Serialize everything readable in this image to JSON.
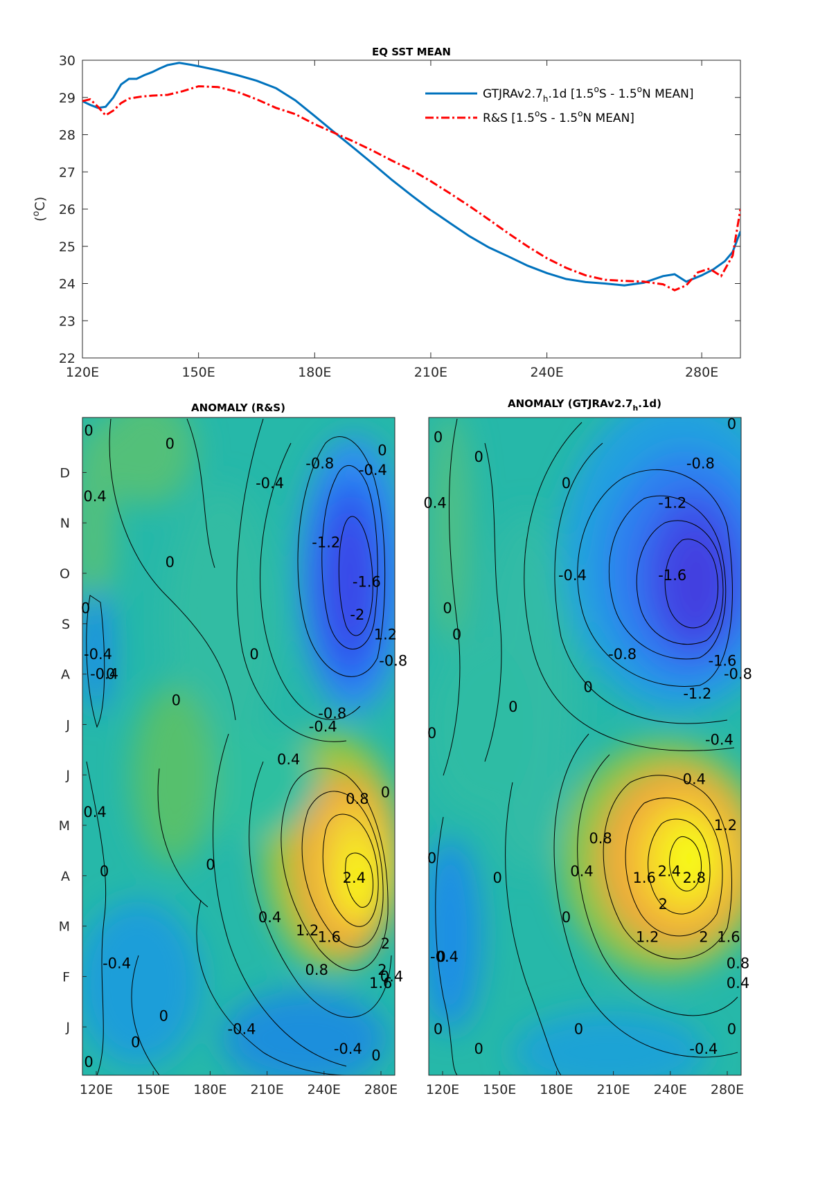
{
  "chart_data": [
    {
      "type": "line",
      "title": "EQ SST MEAN",
      "xlabel": "",
      "ylabel": "(°C)",
      "ylim": [
        22,
        30
      ],
      "xlim": [
        120,
        290
      ],
      "xticks": [
        {
          "value": 120,
          "label": "120E"
        },
        {
          "value": 150,
          "label": "150E"
        },
        {
          "value": 180,
          "label": "180E"
        },
        {
          "value": 210,
          "label": "210E"
        },
        {
          "value": 240,
          "label": "240E"
        },
        {
          "value": 280,
          "label": "280E"
        }
      ],
      "yticks": [
        22,
        23,
        24,
        25,
        26,
        27,
        28,
        29,
        30
      ],
      "grid": false,
      "legend_position": "top-right",
      "series": [
        {
          "name": "GTJRAv2.7h.1d [1.5°S - 1.5°N MEAN]",
          "legend": {
            "pre": "GTJRAv2.7",
            "sub": "h",
            "post": ".1d [1.5",
            "sup1": "o",
            "mid": "S - 1.5",
            "sup2": "o",
            "end": "N MEAN]"
          },
          "color": "#0072BD",
          "style": "solid",
          "x": [
            120,
            122,
            124,
            126,
            128,
            130,
            132,
            134,
            136,
            138,
            140,
            142,
            145,
            148,
            150,
            155,
            160,
            165,
            170,
            175,
            180,
            185,
            190,
            195,
            200,
            205,
            210,
            215,
            220,
            225,
            230,
            235,
            240,
            245,
            250,
            255,
            260,
            265,
            270,
            273,
            276,
            280,
            283,
            286,
            288,
            290
          ],
          "y": [
            28.9,
            28.8,
            28.72,
            28.75,
            29.0,
            29.35,
            29.5,
            29.5,
            29.6,
            29.68,
            29.78,
            29.87,
            29.93,
            29.88,
            29.84,
            29.73,
            29.6,
            29.45,
            29.25,
            28.92,
            28.5,
            28.07,
            27.65,
            27.22,
            26.78,
            26.37,
            25.98,
            25.62,
            25.27,
            24.97,
            24.73,
            24.48,
            24.28,
            24.12,
            24.04,
            24.0,
            23.95,
            24.02,
            24.2,
            24.25,
            24.05,
            24.22,
            24.38,
            24.6,
            24.85,
            25.4
          ]
        },
        {
          "name": "R&S [1.5°S - 1.5°N MEAN]",
          "legend": {
            "pre": "R&S [1.5",
            "sup1": "o",
            "mid": "S - 1.5",
            "sup2": "o",
            "end": "N MEAN]"
          },
          "color": "#FF0000",
          "style": "dashdot",
          "x": [
            120,
            122,
            124,
            126,
            128,
            130,
            132,
            135,
            138,
            142,
            146,
            150,
            155,
            160,
            165,
            170,
            175,
            180,
            185,
            190,
            195,
            200,
            205,
            210,
            215,
            220,
            225,
            230,
            235,
            240,
            245,
            250,
            255,
            260,
            265,
            270,
            273,
            276,
            279,
            282,
            285,
            288,
            290
          ],
          "y": [
            28.9,
            28.95,
            28.75,
            28.52,
            28.65,
            28.85,
            28.97,
            29.02,
            29.05,
            29.07,
            29.17,
            29.3,
            29.28,
            29.15,
            28.95,
            28.72,
            28.55,
            28.28,
            28.05,
            27.82,
            27.57,
            27.3,
            27.05,
            26.75,
            26.42,
            26.08,
            25.72,
            25.35,
            25.0,
            24.68,
            24.42,
            24.22,
            24.1,
            24.07,
            24.05,
            23.98,
            23.82,
            23.95,
            24.3,
            24.4,
            24.2,
            24.75,
            26.0
          ]
        }
      ]
    },
    {
      "type": "heatmap",
      "title": "ANOMALY (R&S)",
      "xticks": [
        "120E",
        "150E",
        "180E",
        "210E",
        "240E",
        "280E"
      ],
      "yticks": [
        "J",
        "F",
        "M",
        "A",
        "M",
        "J",
        "J",
        "A",
        "S",
        "O",
        "N",
        "D"
      ],
      "contour_labels": [
        {
          "v": "0",
          "x": 0.02,
          "y": 0.02
        },
        {
          "v": "0.4",
          "x": 0.04,
          "y": 0.12
        },
        {
          "v": "0",
          "x": 0.28,
          "y": 0.04
        },
        {
          "v": "-0.4",
          "x": 0.6,
          "y": 0.1
        },
        {
          "v": "-0.8",
          "x": 0.76,
          "y": 0.07
        },
        {
          "v": "-0.4",
          "x": 0.93,
          "y": 0.08
        },
        {
          "v": "0",
          "x": 0.96,
          "y": 0.05
        },
        {
          "v": "-1.2",
          "x": 0.78,
          "y": 0.19
        },
        {
          "v": "0",
          "x": 0.28,
          "y": 0.22
        },
        {
          "v": "0",
          "x": 0.01,
          "y": 0.29
        },
        {
          "v": "-1.6",
          "x": 0.91,
          "y": 0.25
        },
        {
          "v": "-2",
          "x": 0.88,
          "y": 0.3
        },
        {
          "v": "-0.4",
          "x": 0.05,
          "y": 0.36
        },
        {
          "v": "1.2",
          "x": 0.97,
          "y": 0.33
        },
        {
          "v": "0",
          "x": 0.55,
          "y": 0.36
        },
        {
          "v": "-0.8",
          "x": 0.995,
          "y": 0.37
        },
        {
          "v": "-0.4",
          "x": 0.07,
          "y": 0.39
        },
        {
          "v": "0",
          "x": 0.09,
          "y": 0.39
        },
        {
          "v": "0",
          "x": 0.3,
          "y": 0.43
        },
        {
          "v": "-0.8",
          "x": 0.8,
          "y": 0.45
        },
        {
          "v": "-0.4",
          "x": 0.77,
          "y": 0.47
        },
        {
          "v": "0.4",
          "x": 0.66,
          "y": 0.52
        },
        {
          "v": "0.8",
          "x": 0.88,
          "y": 0.58
        },
        {
          "v": "0",
          "x": 0.97,
          "y": 0.57
        },
        {
          "v": "0.4",
          "x": 0.04,
          "y": 0.6
        },
        {
          "v": "0",
          "x": 0.41,
          "y": 0.68
        },
        {
          "v": "2.4",
          "x": 0.87,
          "y": 0.7
        },
        {
          "v": "0",
          "x": 0.07,
          "y": 0.69
        },
        {
          "v": "0.4",
          "x": 0.6,
          "y": 0.76
        },
        {
          "v": "1.2",
          "x": 0.72,
          "y": 0.78
        },
        {
          "v": "1.6",
          "x": 0.79,
          "y": 0.79
        },
        {
          "v": "2",
          "x": 0.97,
          "y": 0.8
        },
        {
          "v": "2",
          "x": 0.96,
          "y": 0.84
        },
        {
          "v": "1.6",
          "x": 0.955,
          "y": 0.86
        },
        {
          "v": "0.8",
          "x": 0.75,
          "y": 0.84
        },
        {
          "v": "0.4",
          "x": 0.99,
          "y": 0.85
        },
        {
          "v": "-0.4",
          "x": 0.11,
          "y": 0.83
        },
        {
          "v": "0",
          "x": 0.26,
          "y": 0.91
        },
        {
          "v": "-0.4",
          "x": 0.51,
          "y": 0.93
        },
        {
          "v": "0",
          "x": 0.17,
          "y": 0.95
        },
        {
          "v": "-0.4",
          "x": 0.85,
          "y": 0.96
        },
        {
          "v": "0",
          "x": 0.94,
          "y": 0.97
        },
        {
          "v": "0",
          "x": 0.02,
          "y": 0.98
        }
      ]
    },
    {
      "type": "heatmap",
      "title": "ANOMALY (GTJRAv2.7h.1d)",
      "title_parts": {
        "pre": "ANOMALY (GTJRAv2.7",
        "sub": "h",
        "post": ".1d)"
      },
      "xticks": [
        "120E",
        "150E",
        "180E",
        "210E",
        "240E",
        "280E"
      ],
      "contour_labels": [
        {
          "v": "0",
          "x": 0.03,
          "y": 0.03
        },
        {
          "v": "0",
          "x": 0.97,
          "y": 0.01
        },
        {
          "v": "0",
          "x": 0.16,
          "y": 0.06
        },
        {
          "v": "0.4",
          "x": 0.02,
          "y": 0.13
        },
        {
          "v": "0",
          "x": 0.44,
          "y": 0.1
        },
        {
          "v": "-0.8",
          "x": 0.87,
          "y": 0.07
        },
        {
          "v": "-1.2",
          "x": 0.78,
          "y": 0.13
        },
        {
          "v": "-0.4",
          "x": 0.46,
          "y": 0.24
        },
        {
          "v": "-1.6",
          "x": 0.78,
          "y": 0.24
        },
        {
          "v": "0",
          "x": 0.06,
          "y": 0.29
        },
        {
          "v": "0",
          "x": 0.09,
          "y": 0.33
        },
        {
          "v": "-0.8",
          "x": 0.62,
          "y": 0.36
        },
        {
          "v": "-1.6",
          "x": 0.94,
          "y": 0.37
        },
        {
          "v": "0",
          "x": 0.51,
          "y": 0.41
        },
        {
          "v": "-1.2",
          "x": 0.86,
          "y": 0.42
        },
        {
          "v": "-0.8",
          "x": 0.99,
          "y": 0.39
        },
        {
          "v": "0",
          "x": 0.27,
          "y": 0.44
        },
        {
          "v": "0",
          "x": 0.01,
          "y": 0.48
        },
        {
          "v": "-0.4",
          "x": 0.93,
          "y": 0.49
        },
        {
          "v": "0.4",
          "x": 0.85,
          "y": 0.55
        },
        {
          "v": "1.2",
          "x": 0.95,
          "y": 0.62
        },
        {
          "v": "0.8",
          "x": 0.55,
          "y": 0.64
        },
        {
          "v": "0",
          "x": 0.01,
          "y": 0.67
        },
        {
          "v": "1.6",
          "x": 0.69,
          "y": 0.7
        },
        {
          "v": "2.4",
          "x": 0.77,
          "y": 0.69
        },
        {
          "v": "2.8",
          "x": 0.85,
          "y": 0.7
        },
        {
          "v": "0",
          "x": 0.22,
          "y": 0.7
        },
        {
          "v": "0.4",
          "x": 0.49,
          "y": 0.69
        },
        {
          "v": "2",
          "x": 0.75,
          "y": 0.74
        },
        {
          "v": "0",
          "x": 0.44,
          "y": 0.76
        },
        {
          "v": "1.2",
          "x": 0.7,
          "y": 0.79
        },
        {
          "v": "2",
          "x": 0.88,
          "y": 0.79
        },
        {
          "v": "1.6",
          "x": 0.96,
          "y": 0.79
        },
        {
          "v": "-0.4",
          "x": 0.05,
          "y": 0.82
        },
        {
          "v": "0",
          "x": 0.04,
          "y": 0.82
        },
        {
          "v": "0.4",
          "x": 0.99,
          "y": 0.86
        },
        {
          "v": "0.8",
          "x": 0.99,
          "y": 0.83
        },
        {
          "v": "0",
          "x": 0.03,
          "y": 0.93
        },
        {
          "v": "0",
          "x": 0.48,
          "y": 0.93
        },
        {
          "v": "0",
          "x": 0.97,
          "y": 0.93
        },
        {
          "v": "0",
          "x": 0.16,
          "y": 0.96
        },
        {
          "v": "-0.4",
          "x": 0.88,
          "y": 0.96
        }
      ]
    }
  ]
}
